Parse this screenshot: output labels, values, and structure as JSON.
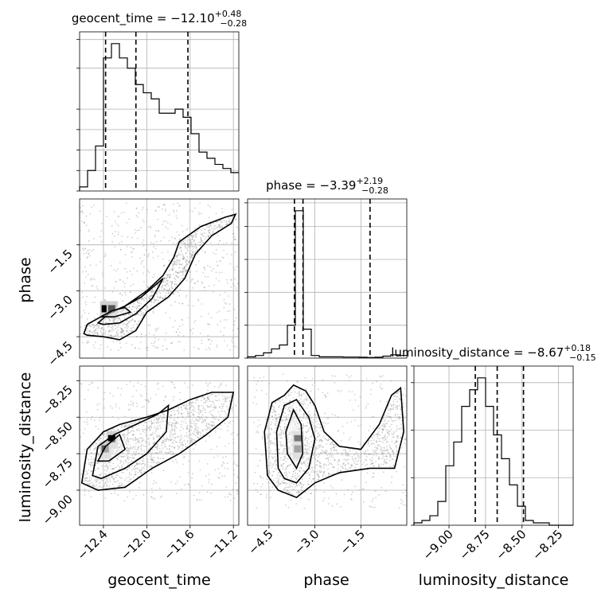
{
  "chart_data": {
    "type": "corner",
    "parameters": [
      {
        "name": "geocent_time",
        "axis_label": "geocent_time",
        "range": [
          -12.62,
          -11.15
        ],
        "ticks": [
          -12.4,
          -12.0,
          -11.6,
          -11.2
        ],
        "tick_labels": [
          "−12.4",
          "−12.0",
          "−11.6",
          "−11.2"
        ],
        "quantiles": [
          -12.38,
          -12.1,
          -11.62
        ],
        "title": {
          "prefix": "geocent_time = −12.10",
          "upper": "+0.48",
          "lower": "−0.28"
        },
        "histogram": {
          "bin_width": 0.0735,
          "counts": [
            2,
            10,
            22,
            65,
            72,
            65,
            60,
            52,
            48,
            45,
            38,
            38,
            40,
            36,
            28,
            19,
            16,
            13,
            11,
            9
          ]
        }
      },
      {
        "name": "phase",
        "axis_label": "phase",
        "range": [
          -5.2,
          0.0
        ],
        "ticks": [
          -4.5,
          -3.0,
          -1.5
        ],
        "tick_labels": [
          "−4.5",
          "−3.0",
          "−1.5"
        ],
        "quantiles": [
          -3.67,
          -3.39,
          -1.2
        ],
        "title": {
          "prefix": "phase = −3.39",
          "upper": "+2.19",
          "lower": "−0.28"
        },
        "histogram": {
          "bin_width": 0.26,
          "counts": [
            1,
            2,
            4,
            7,
            10,
            25,
            112,
            22,
            2,
            1,
            1,
            1,
            0.8,
            0.8,
            0.7,
            0.5,
            0.7,
            1.5,
            2.5,
            2
          ]
        }
      },
      {
        "name": "luminosity_distance",
        "axis_label": "luminosity_distance",
        "range": [
          -9.24,
          -8.15
        ],
        "ticks": [
          -9.0,
          -8.75,
          -8.5,
          -8.25
        ],
        "tick_labels": [
          "−9.00",
          "−8.75",
          "−8.50",
          "−8.25"
        ],
        "quantiles": [
          -8.82,
          -8.67,
          -8.49
        ],
        "title": {
          "prefix": "luminosity_distance = −8.67",
          "upper": "+0.18",
          "lower": "−0.15"
        },
        "histogram": {
          "bin_width": 0.0545,
          "counts": [
            1,
            2,
            4,
            10,
            25,
            35,
            50,
            57,
            62,
            50,
            38,
            28,
            17,
            8,
            2,
            1,
            1,
            0,
            0,
            0
          ]
        }
      }
    ],
    "diag_yticks": [
      [
        0,
        10,
        20,
        30,
        40,
        60,
        74
      ],
      [
        0,
        25,
        50,
        75,
        100,
        118
      ],
      [
        0,
        20,
        40,
        60,
        67
      ]
    ],
    "pairs": [
      {
        "x": "geocent_time",
        "y": "phase",
        "contours": [
          [
            [
              -12.58,
              -4.4
            ],
            [
              -12.55,
              -4.1
            ],
            [
              -12.4,
              -3.8
            ],
            [
              -12.2,
              -3.5
            ],
            [
              -12.0,
              -3.0
            ],
            [
              -11.85,
              -2.5
            ],
            [
              -11.75,
              -1.9
            ],
            [
              -11.7,
              -1.4
            ],
            [
              -11.5,
              -0.9
            ],
            [
              -11.28,
              -0.6
            ],
            [
              -11.18,
              -0.5
            ],
            [
              -11.22,
              -0.8
            ],
            [
              -11.4,
              -1.2
            ],
            [
              -11.55,
              -1.8
            ],
            [
              -11.65,
              -2.6
            ],
            [
              -11.8,
              -3.2
            ],
            [
              -12.0,
              -3.7
            ],
            [
              -12.1,
              -4.3
            ],
            [
              -12.25,
              -4.6
            ],
            [
              -12.4,
              -4.5
            ],
            [
              -12.55,
              -4.45
            ],
            [
              -12.58,
              -4.4
            ]
          ],
          [
            [
              -12.45,
              -4.05
            ],
            [
              -12.35,
              -3.75
            ],
            [
              -12.2,
              -3.5
            ],
            [
              -12.05,
              -3.2
            ],
            [
              -11.95,
              -2.9
            ],
            [
              -11.85,
              -2.6
            ],
            [
              -11.95,
              -3.25
            ],
            [
              -12.1,
              -3.75
            ],
            [
              -12.25,
              -4.05
            ],
            [
              -12.4,
              -4.1
            ],
            [
              -12.45,
              -4.05
            ]
          ],
          [
            [
              -12.42,
              -3.85
            ],
            [
              -12.32,
              -3.65
            ],
            [
              -12.2,
              -3.55
            ],
            [
              -12.15,
              -3.7
            ],
            [
              -12.3,
              -3.85
            ],
            [
              -12.42,
              -3.85
            ]
          ]
        ],
        "density_peaks": [
          [
            -12.38,
            -3.6
          ],
          [
            -12.32,
            -3.6
          ]
        ]
      },
      {
        "x": "geocent_time",
        "y": "luminosity_distance",
        "contours": [
          [
            [
              -12.6,
              -8.95
            ],
            [
              -12.55,
              -8.72
            ],
            [
              -12.4,
              -8.6
            ],
            [
              -12.25,
              -8.55
            ],
            [
              -12.0,
              -8.5
            ],
            [
              -11.8,
              -8.45
            ],
            [
              -11.6,
              -8.38
            ],
            [
              -11.4,
              -8.33
            ],
            [
              -11.2,
              -8.33
            ],
            [
              -11.25,
              -8.5
            ],
            [
              -11.45,
              -8.62
            ],
            [
              -11.7,
              -8.75
            ],
            [
              -11.95,
              -8.85
            ],
            [
              -12.2,
              -8.98
            ],
            [
              -12.45,
              -9.0
            ],
            [
              -12.6,
              -8.95
            ]
          ],
          [
            [
              -12.5,
              -8.9
            ],
            [
              -12.45,
              -8.7
            ],
            [
              -12.3,
              -8.62
            ],
            [
              -12.1,
              -8.55
            ],
            [
              -11.9,
              -8.48
            ],
            [
              -11.8,
              -8.42
            ],
            [
              -11.82,
              -8.6
            ],
            [
              -12.0,
              -8.75
            ],
            [
              -12.2,
              -8.85
            ],
            [
              -12.42,
              -8.92
            ],
            [
              -12.5,
              -8.9
            ]
          ],
          [
            [
              -12.45,
              -8.8
            ],
            [
              -12.38,
              -8.7
            ],
            [
              -12.25,
              -8.62
            ],
            [
              -12.2,
              -8.72
            ],
            [
              -12.35,
              -8.8
            ],
            [
              -12.45,
              -8.8
            ]
          ]
        ],
        "density_peaks": [
          [
            -12.32,
            -8.65
          ],
          [
            -12.38,
            -8.72
          ]
        ]
      },
      {
        "x": "phase",
        "y": "luminosity_distance",
        "contours": [
          [
            [
              -4.55,
              -8.9
            ],
            [
              -4.65,
              -8.6
            ],
            [
              -4.4,
              -8.4
            ],
            [
              -4.0,
              -8.35
            ],
            [
              -3.7,
              -8.28
            ],
            [
              -3.3,
              -8.32
            ],
            [
              -3.0,
              -8.42
            ],
            [
              -2.7,
              -8.6
            ],
            [
              -2.2,
              -8.7
            ],
            [
              -1.5,
              -8.72
            ],
            [
              -0.9,
              -8.55
            ],
            [
              -0.5,
              -8.35
            ],
            [
              -0.2,
              -8.3
            ],
            [
              -0.1,
              -8.6
            ],
            [
              -0.4,
              -8.85
            ],
            [
              -1.2,
              -8.85
            ],
            [
              -2.2,
              -8.88
            ],
            [
              -3.0,
              -8.95
            ],
            [
              -3.6,
              -9.05
            ],
            [
              -4.2,
              -9.0
            ],
            [
              -4.55,
              -8.9
            ]
          ],
          [
            [
              -4.2,
              -8.85
            ],
            [
              -4.25,
              -8.6
            ],
            [
              -4.0,
              -8.42
            ],
            [
              -3.6,
              -8.38
            ],
            [
              -3.2,
              -8.5
            ],
            [
              -3.0,
              -8.65
            ],
            [
              -3.2,
              -8.85
            ],
            [
              -3.6,
              -8.95
            ],
            [
              -4.0,
              -8.92
            ],
            [
              -4.2,
              -8.85
            ]
          ],
          [
            [
              -3.9,
              -8.75
            ],
            [
              -3.95,
              -8.6
            ],
            [
              -3.7,
              -8.45
            ],
            [
              -3.45,
              -8.55
            ],
            [
              -3.4,
              -8.75
            ],
            [
              -3.6,
              -8.85
            ],
            [
              -3.9,
              -8.75
            ]
          ]
        ],
        "density_peaks": [
          [
            -3.55,
            -8.65
          ],
          [
            -3.55,
            -8.72
          ]
        ]
      }
    ]
  }
}
